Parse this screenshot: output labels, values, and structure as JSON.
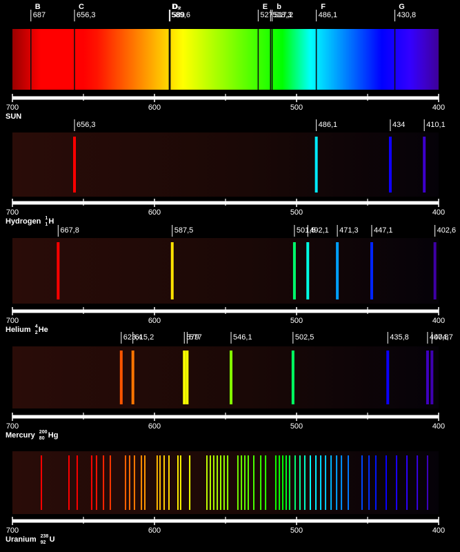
{
  "axis": {
    "xlim": [
      700,
      400
    ],
    "xticks": [
      700,
      600,
      500,
      400
    ],
    "xminor": [
      650,
      550,
      450
    ]
  },
  "spectra": [
    {
      "name": "SUN",
      "kind": "absorption",
      "lines": [
        {
          "value": 687,
          "label": "687",
          "letter": "B"
        },
        {
          "value": 656.3,
          "label": "656,3",
          "letter": "C"
        },
        {
          "value": 589.6,
          "label": "589,6",
          "letter": "D₁"
        },
        {
          "value": 589,
          "label": "589",
          "letter": "D₂"
        },
        {
          "value": 527,
          "label": "527",
          "letter": "E"
        },
        {
          "value": 518.3,
          "label": "518,3"
        },
        {
          "value": 517.2,
          "label": "517,2",
          "letter": "b"
        },
        {
          "value": 486.1,
          "label": "486,1",
          "letter": "F"
        },
        {
          "value": 430.8,
          "label": "430,8",
          "letter": "G"
        }
      ]
    },
    {
      "name": "Hydrogen",
      "mass": "1",
      "number": "1",
      "symbol": "H",
      "kind": "emission",
      "lines": [
        {
          "value": 656.3,
          "label": "656,3"
        },
        {
          "value": 486.1,
          "label": "486,1"
        },
        {
          "value": 434,
          "label": "434"
        },
        {
          "value": 410.1,
          "label": "410,1"
        }
      ]
    },
    {
      "name": "Helium",
      "mass": "4",
      "number": "2",
      "symbol": "He",
      "kind": "emission",
      "lines": [
        {
          "value": 667.8,
          "label": "667,8"
        },
        {
          "value": 587.5,
          "label": "587,5"
        },
        {
          "value": 501.5,
          "label": "501,5"
        },
        {
          "value": 492.1,
          "label": "492,1"
        },
        {
          "value": 471.3,
          "label": "471,3"
        },
        {
          "value": 447.1,
          "label": "447,1"
        },
        {
          "value": 402.6,
          "label": "402,6"
        }
      ]
    },
    {
      "name": "Mercury",
      "mass": "200",
      "number": "80",
      "symbol": "Hg",
      "kind": "emission",
      "lines": [
        {
          "value": 623.4,
          "label": "623,4"
        },
        {
          "value": 615.2,
          "label": "615,2"
        },
        {
          "value": 579,
          "label": "579"
        },
        {
          "value": 577,
          "label": "577"
        },
        {
          "value": 546.1,
          "label": "546,1"
        },
        {
          "value": 502.5,
          "label": "502,5"
        },
        {
          "value": 435.8,
          "label": "435,8"
        },
        {
          "value": 407.8,
          "label": "407,8"
        },
        {
          "value": 404.7,
          "label": "404,7"
        }
      ]
    },
    {
      "name": "Uranium",
      "mass": "238",
      "number": "92",
      "symbol": "U",
      "kind": "emission",
      "lines": [
        {
          "value": 679.6
        },
        {
          "value": 660.2
        },
        {
          "value": 654.4
        },
        {
          "value": 644.2
        },
        {
          "value": 640.8
        },
        {
          "value": 635.9
        },
        {
          "value": 631.1
        },
        {
          "value": 620.4
        },
        {
          "value": 617.5
        },
        {
          "value": 614.1
        },
        {
          "value": 609.2
        },
        {
          "value": 606.8
        },
        {
          "value": 598.1
        },
        {
          "value": 596.1
        },
        {
          "value": 593.2
        },
        {
          "value": 589.8
        },
        {
          "value": 583.5
        },
        {
          "value": 581.6
        },
        {
          "value": 575.2
        },
        {
          "value": 563.1
        },
        {
          "value": 560.7
        },
        {
          "value": 558.3
        },
        {
          "value": 555.8
        },
        {
          "value": 553.4
        },
        {
          "value": 551.0
        },
        {
          "value": 548.5
        },
        {
          "value": 541.3
        },
        {
          "value": 538.8
        },
        {
          "value": 536.4
        },
        {
          "value": 534.0
        },
        {
          "value": 530.1
        },
        {
          "value": 525.2
        },
        {
          "value": 521.8
        },
        {
          "value": 514.6
        },
        {
          "value": 512.1
        },
        {
          "value": 509.7
        },
        {
          "value": 507.3
        },
        {
          "value": 504.9
        },
        {
          "value": 501.0
        },
        {
          "value": 497.6
        },
        {
          "value": 494.2
        },
        {
          "value": 490.3
        },
        {
          "value": 486.4
        },
        {
          "value": 483.0
        },
        {
          "value": 479.6
        },
        {
          "value": 475.7
        },
        {
          "value": 471.8
        },
        {
          "value": 468.4
        },
        {
          "value": 463.6
        },
        {
          "value": 453.9
        },
        {
          "value": 449.0
        },
        {
          "value": 444.2
        },
        {
          "value": 436.9
        },
        {
          "value": 429.6
        },
        {
          "value": 422.3
        },
        {
          "value": 415.0
        },
        {
          "value": 407.8
        }
      ]
    }
  ]
}
